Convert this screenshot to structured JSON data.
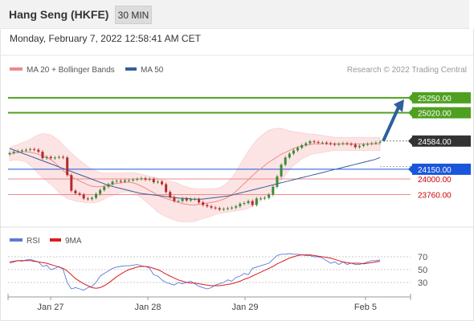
{
  "header": {
    "title": "Hang Seng (HKFE)",
    "interval": "30 MIN",
    "datetime": "Monday, February 7, 2022 12:58:41 AM CET"
  },
  "legend": {
    "ma20_label": "MA 20 + Bollinger Bands",
    "ma50_label": "MA 50",
    "credit": "Research © 2022 Trading Central"
  },
  "colors": {
    "resistance": "#4fa020",
    "support": "#1a56db",
    "support_text": "#d00000",
    "current": "#333333",
    "ma20": "#f08a8a",
    "ma50": "#3a5d9c",
    "band": "#fde4e4",
    "candle_up": "#3b8a3b",
    "candle_down": "#b52a2a",
    "rsi": "#5b7bd6",
    "rsi_ma": "#d81e1e",
    "arrow": "#2f5f9c"
  },
  "chart_data": [
    {
      "type": "candlestick",
      "y_range": [
        23420,
        25520
      ],
      "x_labels": [
        "Jan 27",
        "Jan 28",
        "Jan 29",
        "Feb 5"
      ],
      "levels": [
        {
          "value": 25250,
          "label": "25250.00",
          "kind": "resistance"
        },
        {
          "value": 25020,
          "label": "25020.00",
          "kind": "resistance"
        },
        {
          "value": 24584,
          "label": "24584.00",
          "kind": "current"
        },
        {
          "value": 24150,
          "label": "24150.00",
          "kind": "support-strong"
        },
        {
          "value": 24000,
          "label": "24000.00",
          "kind": "support"
        },
        {
          "value": 23760,
          "label": "23760.00",
          "kind": "support"
        }
      ],
      "closes": [
        24400,
        24420,
        24430,
        24440,
        24450,
        24460,
        24450,
        24420,
        24320,
        24340,
        24320,
        24330,
        24340,
        24330,
        24060,
        23820,
        23780,
        23760,
        23700,
        23690,
        23710,
        23770,
        23830,
        23880,
        23920,
        23960,
        23970,
        23960,
        23980,
        23980,
        23990,
        24000,
        24010,
        23990,
        24000,
        23950,
        23960,
        23920,
        23800,
        23720,
        23660,
        23660,
        23700,
        23670,
        23690,
        23690,
        23640,
        23600,
        23580,
        23560,
        23550,
        23530,
        23540,
        23550,
        23560,
        23580,
        23620,
        23630,
        23660,
        23600,
        23700,
        23700,
        23710,
        23760,
        23880,
        24040,
        24220,
        24330,
        24390,
        24440,
        24480,
        24520,
        24550,
        24580,
        24570,
        24560,
        24560,
        24550,
        24540,
        24530,
        24540,
        24550,
        24540,
        24530,
        24490,
        24510,
        24530,
        24540,
        24550,
        24560,
        24570
      ],
      "ma20": [
        24380,
        24400,
        24410,
        24420,
        24420,
        24410,
        24400,
        24380,
        24360,
        24330,
        24300,
        24250,
        24190,
        24130,
        24080,
        24040,
        24000,
        23970,
        23940,
        23910,
        23890,
        23880,
        23880,
        23890,
        23910,
        23920,
        23930,
        23940,
        23950,
        23950,
        23940,
        23920,
        23890,
        23860,
        23820,
        23790,
        23750,
        23720,
        23700,
        23680,
        23660,
        23640,
        23620,
        23610,
        23600,
        23600,
        23610,
        23620,
        23630,
        23640,
        23650,
        23670,
        23690,
        23720,
        23760,
        23810,
        23870,
        23930,
        23990,
        24050,
        24110,
        24160,
        24210,
        24260,
        24300,
        24340,
        24380,
        24410,
        24440,
        24470,
        24490,
        24510,
        24520,
        24530,
        24540,
        24540,
        24540,
        24540,
        24540,
        24540,
        24540,
        24540,
        24540,
        24540,
        24540,
        24540,
        24540,
        24540,
        24540,
        24540,
        24540
      ],
      "ma50": [
        24470,
        24440,
        24410,
        24380,
        24350,
        24320,
        24290,
        24260,
        24230,
        24200,
        24170,
        24140,
        24110,
        24080,
        24050,
        24020,
        23990,
        23960,
        23930,
        23900,
        23880,
        23860,
        23840,
        23820,
        23800,
        23780,
        23770,
        23760,
        23750,
        23740,
        23730,
        23720,
        23710,
        23700,
        23700,
        23690,
        23690,
        23690,
        23700,
        23710,
        23720,
        23730,
        23740,
        23760,
        23780,
        23800,
        23820,
        23840,
        23860,
        23880,
        23900,
        23920,
        23940,
        23960,
        23980,
        24000,
        24020,
        24040,
        24060,
        24080,
        24100,
        24120,
        24140,
        24160,
        24180,
        24200,
        24220,
        24240,
        24260,
        24280,
        24300,
        24330
      ],
      "band_width": [
        100,
        110,
        120,
        140,
        160,
        200,
        250,
        300,
        340,
        360,
        380,
        390,
        400,
        390,
        380,
        360,
        340,
        320,
        300,
        280,
        260,
        240,
        220,
        200,
        180,
        170,
        160,
        150,
        150,
        150,
        160,
        170,
        180,
        200,
        220,
        240,
        260,
        270,
        280,
        290,
        290,
        290,
        280,
        270,
        260,
        250,
        240,
        230,
        220,
        210,
        200,
        200,
        210,
        230,
        260,
        300,
        350,
        400,
        440,
        470,
        490,
        500,
        500,
        490,
        470,
        440,
        400,
        350,
        300,
        260,
        230,
        200,
        180,
        160,
        150,
        140,
        130,
        120,
        110,
        100,
        100,
        100,
        100,
        100,
        100,
        100,
        100,
        100,
        100,
        100,
        100
      ],
      "forecast_arrow": {
        "from": 24584,
        "to": 25250
      }
    },
    {
      "type": "line",
      "series": [
        {
          "name": "RSI"
        },
        {
          "name": "9MA"
        }
      ],
      "y_ticks": [
        70,
        50,
        30
      ],
      "ylim": [
        10,
        80
      ],
      "rsi": [
        60,
        62,
        64,
        63,
        65,
        66,
        64,
        62,
        55,
        57,
        50,
        52,
        55,
        50,
        30,
        20,
        22,
        20,
        18,
        22,
        24,
        30,
        40,
        44,
        48,
        52,
        54,
        55,
        56,
        56,
        57,
        58,
        56,
        55,
        52,
        42,
        40,
        34,
        30,
        28,
        26,
        30,
        28,
        30,
        32,
        28,
        24,
        22,
        20,
        22,
        26,
        28,
        30,
        34,
        32,
        38,
        40,
        44,
        42,
        52,
        54,
        56,
        58,
        60,
        66,
        72,
        74,
        74,
        75,
        74,
        74,
        73,
        72,
        72,
        70,
        70,
        68,
        64,
        60,
        62,
        58,
        62,
        58,
        60,
        58,
        58,
        60,
        62,
        64,
        64,
        65
      ],
      "rsi_ma": [
        62,
        63,
        64,
        64,
        64,
        64,
        63,
        62,
        61,
        60,
        58,
        56,
        54,
        52,
        48,
        42,
        36,
        32,
        28,
        25,
        22,
        21,
        22,
        25,
        29,
        34,
        39,
        43,
        47,
        50,
        52,
        54,
        55,
        55,
        54,
        52,
        50,
        47,
        43,
        40,
        37,
        34,
        32,
        30,
        29,
        29,
        28,
        27,
        26,
        25,
        25,
        25,
        26,
        27,
        28,
        30,
        32,
        35,
        37,
        40,
        43,
        46,
        49,
        52,
        55,
        59,
        62,
        65,
        68,
        70,
        72,
        73,
        73,
        73,
        72,
        71,
        70,
        69,
        68,
        66,
        64,
        62,
        61,
        60,
        60,
        60,
        59,
        60,
        61,
        62,
        63
      ]
    }
  ]
}
